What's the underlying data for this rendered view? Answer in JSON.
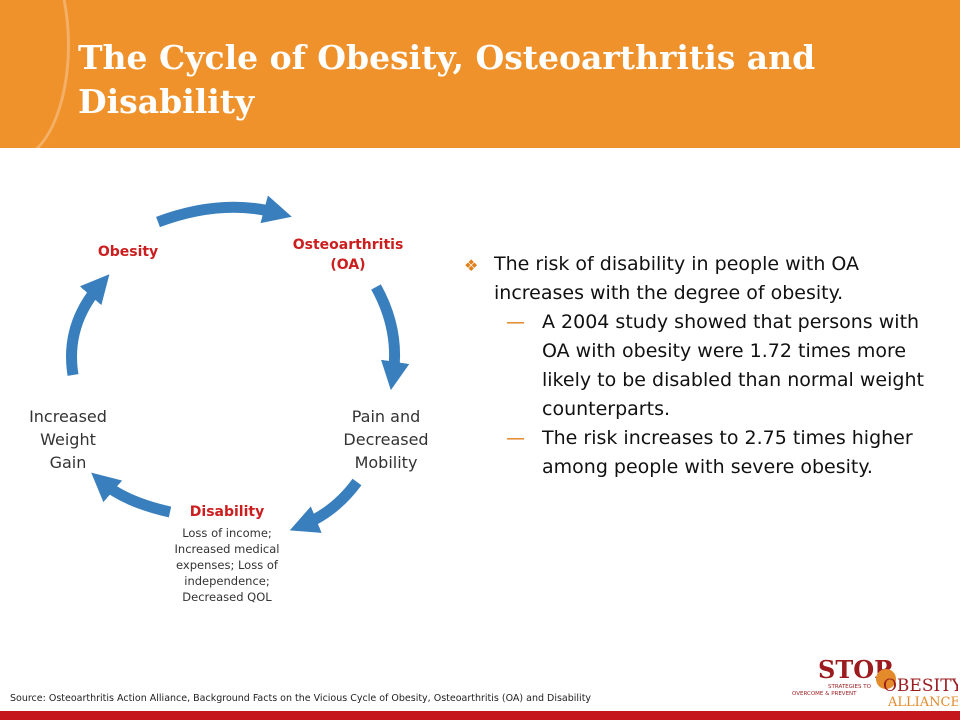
{
  "header": {
    "title": "The Cycle of Obesity, Osteoarthritis and Disability"
  },
  "cycle": {
    "obesity": "Obesity",
    "osteoarthritis_line1": "Osteoarthritis",
    "osteoarthritis_line2": "(OA)",
    "pain_line1": "Pain and",
    "pain_line2": "Decreased",
    "pain_line3": "Mobility",
    "disability": "Disability",
    "disability_sub1": "Loss of income;",
    "disability_sub2": "Increased medical",
    "disability_sub3": "expenses; Loss of",
    "disability_sub4": "independence;",
    "disability_sub5": "Decreased QOL",
    "weight_line1": "Increased",
    "weight_line2": "Weight",
    "weight_line3": "Gain"
  },
  "content": {
    "bullet": "The risk of disability in people with OA increases with the degree of obesity.",
    "sub1": "A 2004 study showed that persons with OA with obesity were 1.72 times more likely to be disabled than normal weight counterparts.",
    "sub2": "The risk increases to 2.75 times higher among people with severe obesity."
  },
  "footer": {
    "source": "Source: Osteoarthritis Action Alliance, Background Facts on the Vicious Cycle of Obesity, Osteoarthritis (OA) and Disability"
  },
  "logo": {
    "line1": "STOP",
    "line2": "OBESITY",
    "line3": "ALLIANCE",
    "tagline1": "STRATEGIES TO",
    "tagline2": "OVERCOME & PREVENT"
  },
  "colors": {
    "header": "#f0922b",
    "arrow": "#3a7fbd",
    "node_red": "#cc1e1e",
    "bullet_orange": "#e17f1b",
    "bottom_bar": "#c4161c"
  }
}
